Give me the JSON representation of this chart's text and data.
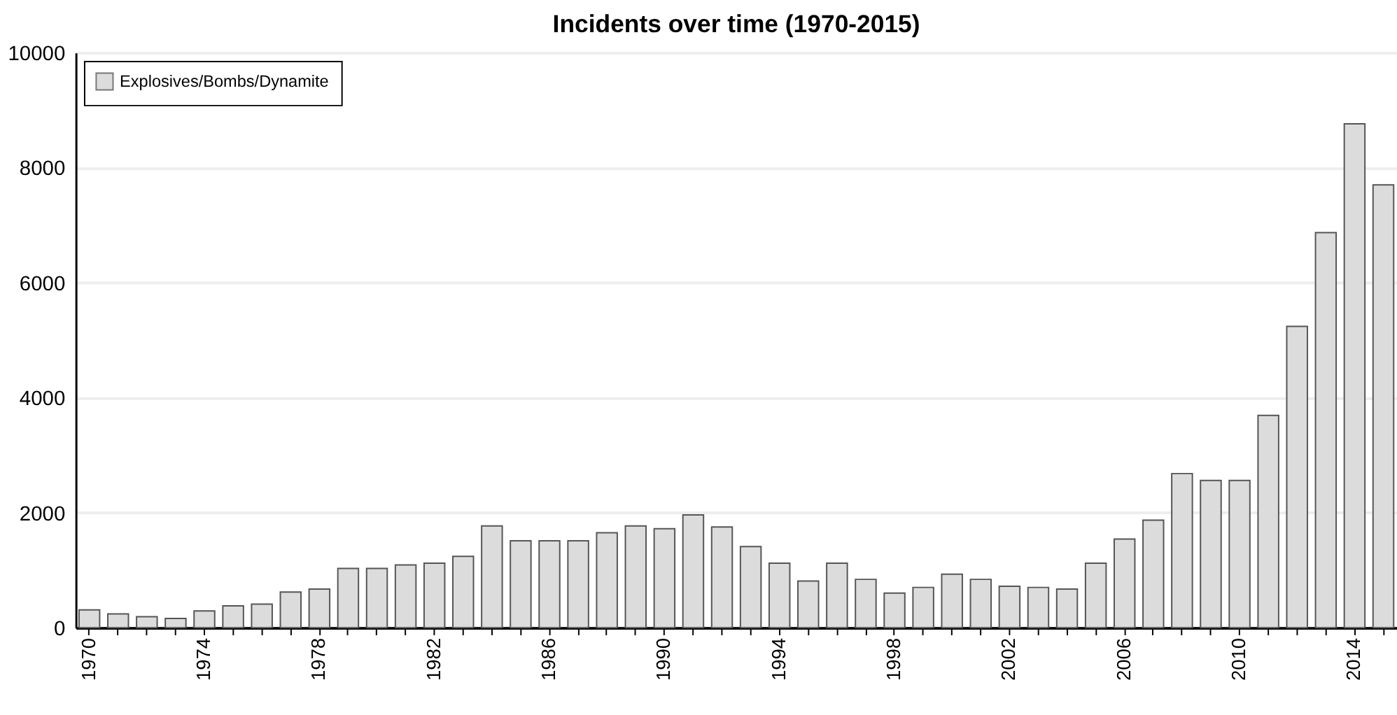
{
  "chart_data": {
    "type": "bar",
    "title": "Incidents over time (1970-2015)",
    "categories": [
      "1970",
      null,
      null,
      null,
      "1974",
      null,
      null,
      null,
      "1978",
      null,
      null,
      null,
      "1982",
      null,
      null,
      null,
      "1986",
      null,
      null,
      null,
      "1990",
      null,
      null,
      null,
      "1994",
      null,
      null,
      null,
      "1998",
      null,
      null,
      null,
      "2002",
      null,
      null,
      null,
      "2006",
      null,
      null,
      null,
      "2010",
      null,
      null,
      null,
      "2014",
      null
    ],
    "series": [
      {
        "name": "Explosives/Bombs/Dynamite",
        "color": "#dcdcdc",
        "values": [
          310,
          240,
          190,
          160,
          290,
          380,
          410,
          620,
          670,
          1030,
          1030,
          1090,
          1120,
          1240,
          1770,
          1510,
          1510,
          1510,
          1650,
          1770,
          1720,
          1960,
          1750,
          1410,
          1120,
          810,
          1120,
          840,
          600,
          700,
          930,
          840,
          720,
          700,
          670,
          1120,
          1540,
          1870,
          2680,
          2560,
          2560,
          3690,
          5240,
          6870,
          8760,
          7700
        ]
      }
    ],
    "ylim": [
      0,
      10000
    ],
    "yticks": [
      0,
      2000,
      4000,
      6000,
      8000,
      10000
    ],
    "grid": "y",
    "legend": "top left"
  }
}
